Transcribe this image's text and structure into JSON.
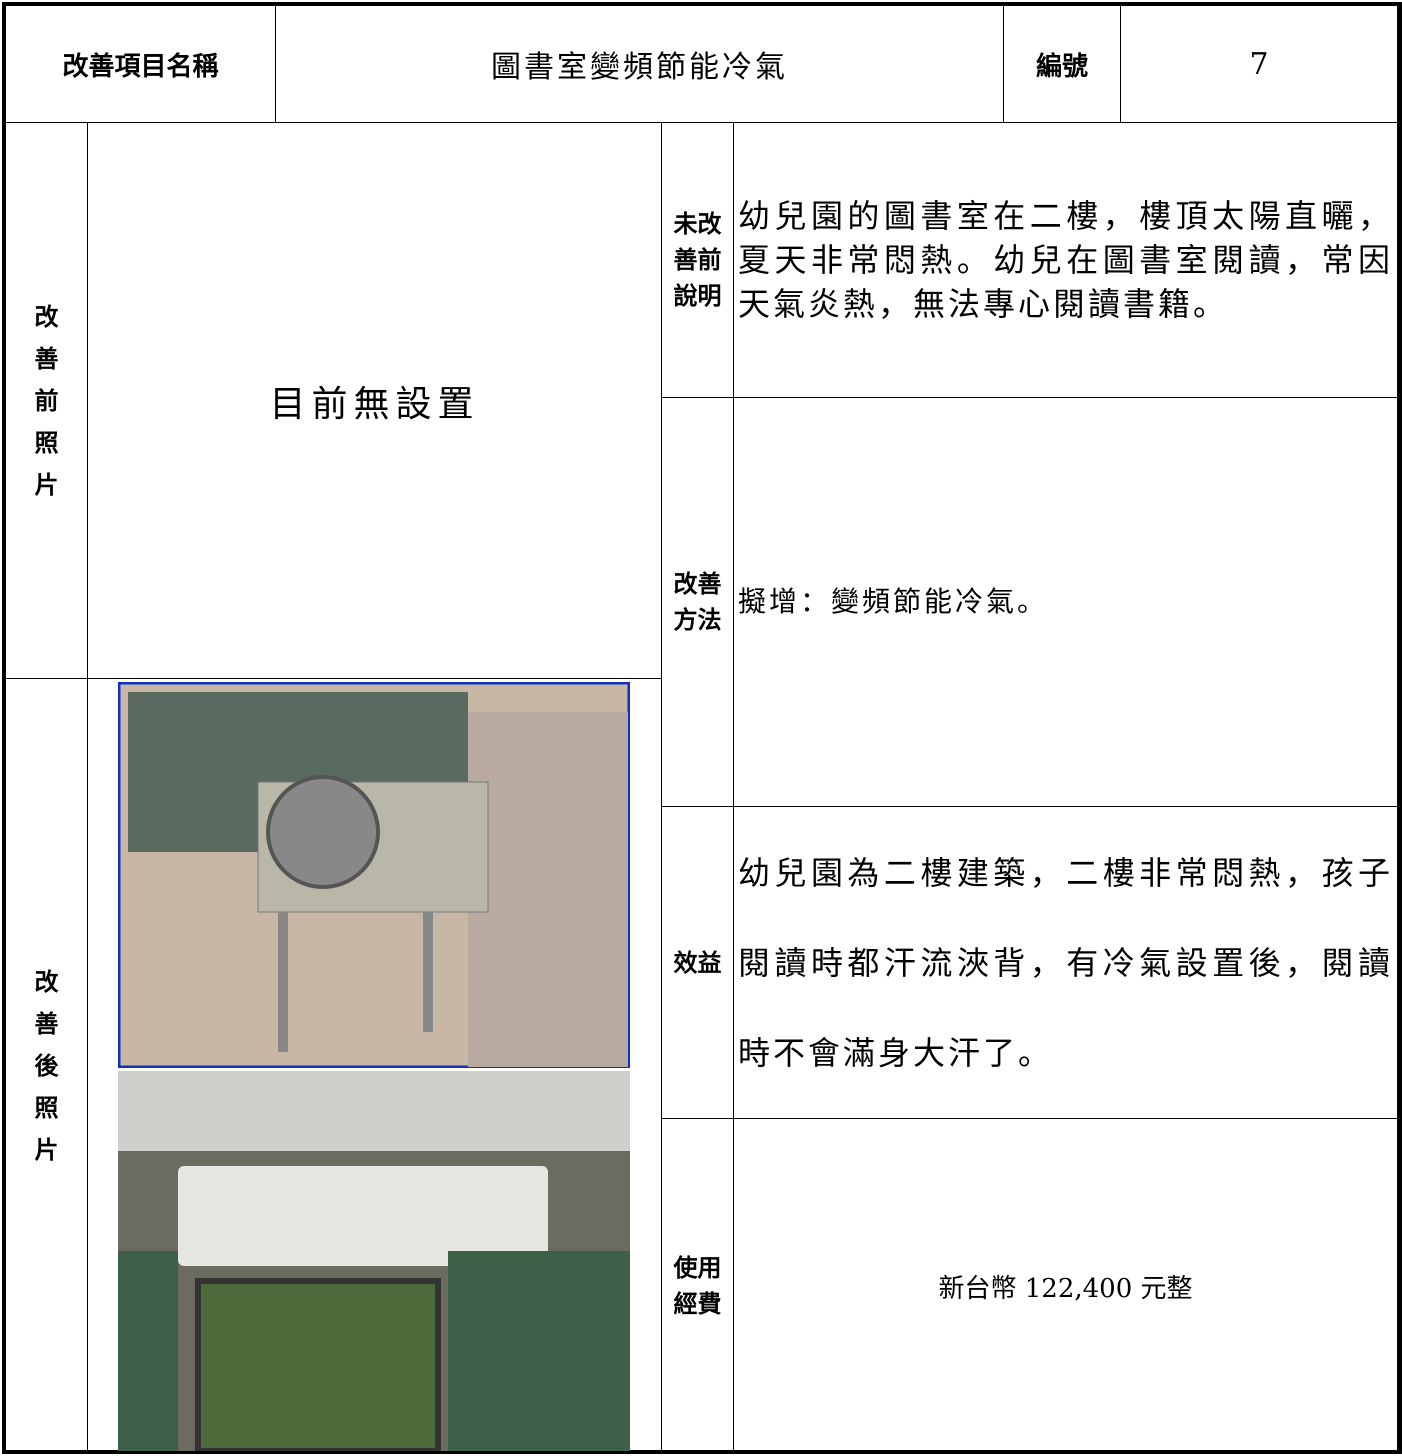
{
  "header": {
    "item_label": "改善項目名稱",
    "item_name": "圖書室變頻節能冷氣",
    "number_label": "編號",
    "number": 7
  },
  "before": {
    "photo_label": "改善前照片",
    "photo_text": "目前無設置",
    "desc_label": "未改善前說明",
    "desc": "幼兒園的圖書室在二樓，樓頂太陽直曬，夏天非常悶熱。幼兒在圖書室閱讀，常因天氣炎熱，無法專心閱讀書籍。"
  },
  "method": {
    "label": "改善方法",
    "text": "擬增：變頻節能冷氣。"
  },
  "after": {
    "photo_label": "改善後照片"
  },
  "benefit": {
    "label": "效益",
    "text": "幼兒園為二樓建築，二樓非常悶熱，孩子閱讀時都汗流浹背，有冷氣設置後，閱讀時不會滿身大汗了。"
  },
  "cost": {
    "label": "使用經費",
    "text": "新台幣 122,400 元整"
  }
}
